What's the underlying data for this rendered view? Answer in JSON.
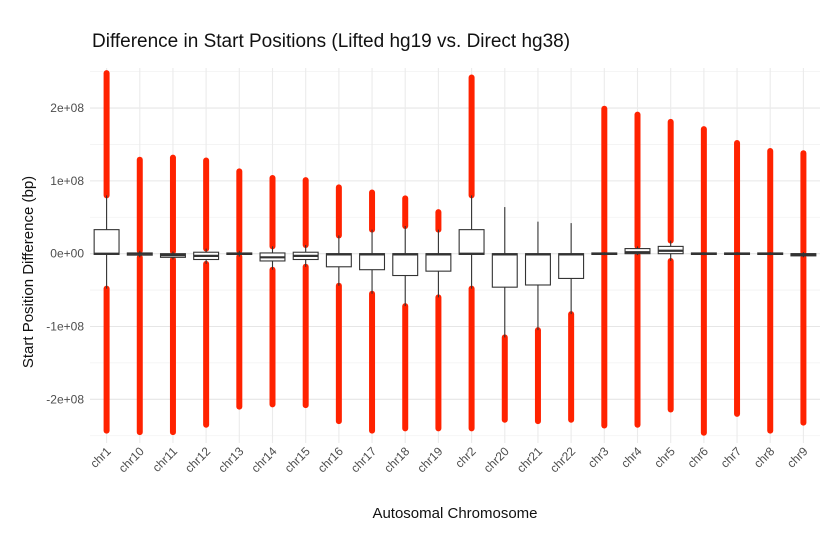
{
  "chart_data": {
    "type": "boxplot",
    "title": "Difference in Start Positions (Lifted hg19 vs. Direct hg38)",
    "xlabel": "Autosomal Chromosome",
    "ylabel": "Start Position Difference (bp)",
    "ylim": [
      -260000000,
      255000000
    ],
    "y_ticks": [
      {
        "value": 200000000,
        "label": "2e+08"
      },
      {
        "value": 100000000,
        "label": "1e+08"
      },
      {
        "value": 0,
        "label": "0e+00"
      },
      {
        "value": -100000000,
        "label": "-1e+08"
      },
      {
        "value": -200000000,
        "label": "-2e+08"
      }
    ],
    "grid": true,
    "outlier_color": "#ff2200",
    "box_color": "#333333",
    "categories": [
      "chr1",
      "chr10",
      "chr11",
      "chr12",
      "chr13",
      "chr14",
      "chr15",
      "chr16",
      "chr17",
      "chr18",
      "chr19",
      "chr2",
      "chr20",
      "chr21",
      "chr22",
      "chr3",
      "chr4",
      "chr5",
      "chr6",
      "chr7",
      "chr8",
      "chr9"
    ],
    "boxes": [
      {
        "whisker_low": -48000000,
        "q1": -1000000,
        "median": 0,
        "q3": 33000000,
        "whisker_high": 80000000,
        "outlier_min": -243000000,
        "outlier_max": 248000000
      },
      {
        "whisker_low": -5000000,
        "q1": -2000000,
        "median": 0,
        "q3": 1000000,
        "whisker_high": 4000000,
        "outlier_min": -245000000,
        "outlier_max": 129000000
      },
      {
        "whisker_low": -8000000,
        "q1": -5000000,
        "median": -2000000,
        "q3": 0,
        "whisker_high": 3000000,
        "outlier_min": -245000000,
        "outlier_max": 132000000
      },
      {
        "whisker_low": -14000000,
        "q1": -8000000,
        "median": -3000000,
        "q3": 2000000,
        "whisker_high": 7000000,
        "outlier_min": -235000000,
        "outlier_max": 128000000
      },
      {
        "whisker_low": -4000000,
        "q1": -1000000,
        "median": 0,
        "q3": 1000000,
        "whisker_high": 4000000,
        "outlier_min": -210000000,
        "outlier_max": 113000000
      },
      {
        "whisker_low": -22000000,
        "q1": -10000000,
        "median": -5000000,
        "q3": 1000000,
        "whisker_high": 10000000,
        "outlier_min": -207000000,
        "outlier_max": 104000000
      },
      {
        "whisker_low": -18000000,
        "q1": -8000000,
        "median": -3000000,
        "q3": 2000000,
        "whisker_high": 12000000,
        "outlier_min": -208000000,
        "outlier_max": 101000000
      },
      {
        "whisker_low": -44000000,
        "q1": -18000000,
        "median": -1000000,
        "q3": 0,
        "whisker_high": 25000000,
        "outlier_min": -230000000,
        "outlier_max": 91000000
      },
      {
        "whisker_low": -55000000,
        "q1": -22000000,
        "median": -1000000,
        "q3": 0,
        "whisker_high": 33000000,
        "outlier_min": -243000000,
        "outlier_max": 84000000
      },
      {
        "whisker_low": -72000000,
        "q1": -30000000,
        "median": -1000000,
        "q3": 0,
        "whisker_high": 38000000,
        "outlier_min": -240000000,
        "outlier_max": 76000000
      },
      {
        "whisker_low": -60000000,
        "q1": -24000000,
        "median": -1000000,
        "q3": 0,
        "whisker_high": 33000000,
        "outlier_min": -240000000,
        "outlier_max": 57000000
      },
      {
        "whisker_low": -48000000,
        "q1": -1000000,
        "median": 0,
        "q3": 33000000,
        "whisker_high": 80000000,
        "outlier_min": -240000000,
        "outlier_max": 242000000
      },
      {
        "whisker_low": -115000000,
        "q1": -46000000,
        "median": -1000000,
        "q3": 0,
        "whisker_high": 64000000,
        "outlier_min": -228000000,
        "outlier_max": null
      },
      {
        "whisker_low": -105000000,
        "q1": -43000000,
        "median": -1000000,
        "q3": 0,
        "whisker_high": 44000000,
        "outlier_min": -230000000,
        "outlier_max": null
      },
      {
        "whisker_low": -83000000,
        "q1": -34000000,
        "median": -1000000,
        "q3": 0,
        "whisker_high": 42000000,
        "outlier_min": -228000000,
        "outlier_max": null
      },
      {
        "whisker_low": -2000000,
        "q1": -1000000,
        "median": 0,
        "q3": 1000000,
        "whisker_high": 2000000,
        "outlier_min": -236000000,
        "outlier_max": 199000000
      },
      {
        "whisker_low": -2000000,
        "q1": 0,
        "median": 2000000,
        "q3": 7000000,
        "whisker_high": 10000000,
        "outlier_min": -235000000,
        "outlier_max": 191000000
      },
      {
        "whisker_low": -10000000,
        "q1": 0,
        "median": 4000000,
        "q3": 10000000,
        "whisker_high": 18000000,
        "outlier_min": -214000000,
        "outlier_max": 181000000
      },
      {
        "whisker_low": -2000000,
        "q1": -1000000,
        "median": 0,
        "q3": 1000000,
        "whisker_high": 2000000,
        "outlier_min": -246000000,
        "outlier_max": 171000000
      },
      {
        "whisker_low": -2000000,
        "q1": -1000000,
        "median": 0,
        "q3": 1000000,
        "whisker_high": 2000000,
        "outlier_min": -220000000,
        "outlier_max": 152000000
      },
      {
        "whisker_low": -2000000,
        "q1": -1000000,
        "median": 0,
        "q3": 1000000,
        "whisker_high": 2000000,
        "outlier_min": -243000000,
        "outlier_max": 141000000
      },
      {
        "whisker_low": -5000000,
        "q1": -3000000,
        "median": -1000000,
        "q3": 0,
        "whisker_high": 2000000,
        "outlier_min": -232000000,
        "outlier_max": 138000000
      }
    ]
  }
}
